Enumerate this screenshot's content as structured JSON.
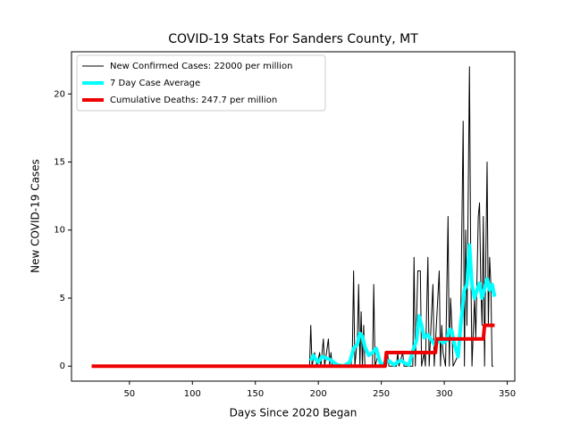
{
  "chart_data": {
    "type": "line",
    "title": "COVID-19 Stats For Sanders County, MT",
    "xlabel": "Days Since 2020 Began",
    "ylabel": "New COVID-19 Cases",
    "xlim": [
      4,
      356
    ],
    "ylim": [
      -1.1,
      23.1
    ],
    "xticks": [
      50,
      100,
      150,
      200,
      250,
      300,
      350
    ],
    "yticks": [
      0,
      5,
      10,
      15,
      20
    ],
    "legend": "upper left",
    "series": [
      {
        "name": "New Confirmed Cases: 22000 per million",
        "color": "#000000",
        "width": 1,
        "x": [
          20,
          193,
          194,
          195,
          197,
          199,
          201,
          202,
          204,
          205,
          208,
          209,
          210,
          211,
          226,
          227,
          228,
          229,
          231,
          232,
          233,
          234,
          235,
          236,
          237,
          243,
          244,
          245,
          248,
          249,
          254,
          255,
          256,
          262,
          263,
          264,
          267,
          268,
          275,
          276,
          277,
          279,
          281,
          282,
          284,
          285,
          287,
          288,
          291,
          292,
          296,
          297,
          298,
          299,
          301,
          303,
          304,
          305,
          306,
          307,
          312,
          313,
          315,
          316,
          317,
          318,
          320,
          321,
          322,
          324,
          325,
          327,
          328,
          329,
          330,
          331,
          332,
          333,
          334,
          335,
          336,
          337,
          338,
          339
        ],
        "values": [
          0,
          0,
          3,
          0,
          1,
          0,
          1,
          0,
          2,
          0,
          2,
          0,
          1,
          0,
          0,
          1,
          7,
          0,
          2,
          6,
          0,
          4,
          0,
          3,
          0,
          0,
          6,
          0,
          1,
          0,
          0,
          1,
          0,
          0,
          1,
          0,
          1,
          0,
          0,
          8,
          0,
          7,
          7,
          0,
          1,
          0,
          8,
          0,
          6,
          0,
          7,
          0,
          3,
          1,
          0,
          11,
          0,
          5,
          3,
          0,
          1,
          3,
          18,
          0,
          10,
          3,
          22,
          8,
          0,
          5,
          2,
          11,
          12,
          6,
          3,
          11,
          0,
          8,
          15,
          3,
          8,
          6,
          0,
          0
        ]
      },
      {
        "name": "7 Day Case Average",
        "color": "#00ffff",
        "width": 4,
        "x": [
          194,
          196,
          198,
          200,
          203,
          206,
          209,
          212,
          215,
          220,
          225,
          228,
          231,
          233,
          235,
          237,
          240,
          243,
          246,
          249,
          252,
          256,
          260,
          263,
          266,
          269,
          272,
          275,
          278,
          280,
          282,
          284,
          287,
          290,
          293,
          296,
          299,
          302,
          304,
          306,
          308,
          311,
          313,
          316,
          318,
          320,
          322,
          324,
          326,
          328,
          330,
          332,
          334,
          336,
          338,
          340
        ],
        "values": [
          0.4,
          0.8,
          0.5,
          0.3,
          0.7,
          0.6,
          0.5,
          0.3,
          0.1,
          0,
          0.3,
          1.3,
          1.6,
          2.4,
          2.2,
          1.4,
          0.8,
          1.0,
          1.3,
          0.3,
          0.1,
          0.4,
          0.1,
          0.3,
          0.4,
          0.2,
          0.1,
          1.1,
          1.9,
          3.7,
          3.0,
          2.1,
          2.3,
          1.9,
          1.5,
          2.0,
          1.7,
          1.9,
          2.7,
          2.6,
          1.6,
          0.7,
          3.0,
          5.6,
          6.0,
          8.9,
          6.0,
          5.0,
          5.6,
          6.1,
          5.0,
          5.7,
          6.4,
          5.6,
          6.0,
          5.1
        ]
      },
      {
        "name": "Cumulative Deaths: 247.7 per million",
        "color": "#ee0000",
        "width": 4,
        "x": [
          20,
          253,
          254,
          293,
          294,
          331,
          332,
          340
        ],
        "values": [
          0,
          0,
          1,
          1,
          2,
          2,
          3,
          3
        ]
      }
    ]
  }
}
